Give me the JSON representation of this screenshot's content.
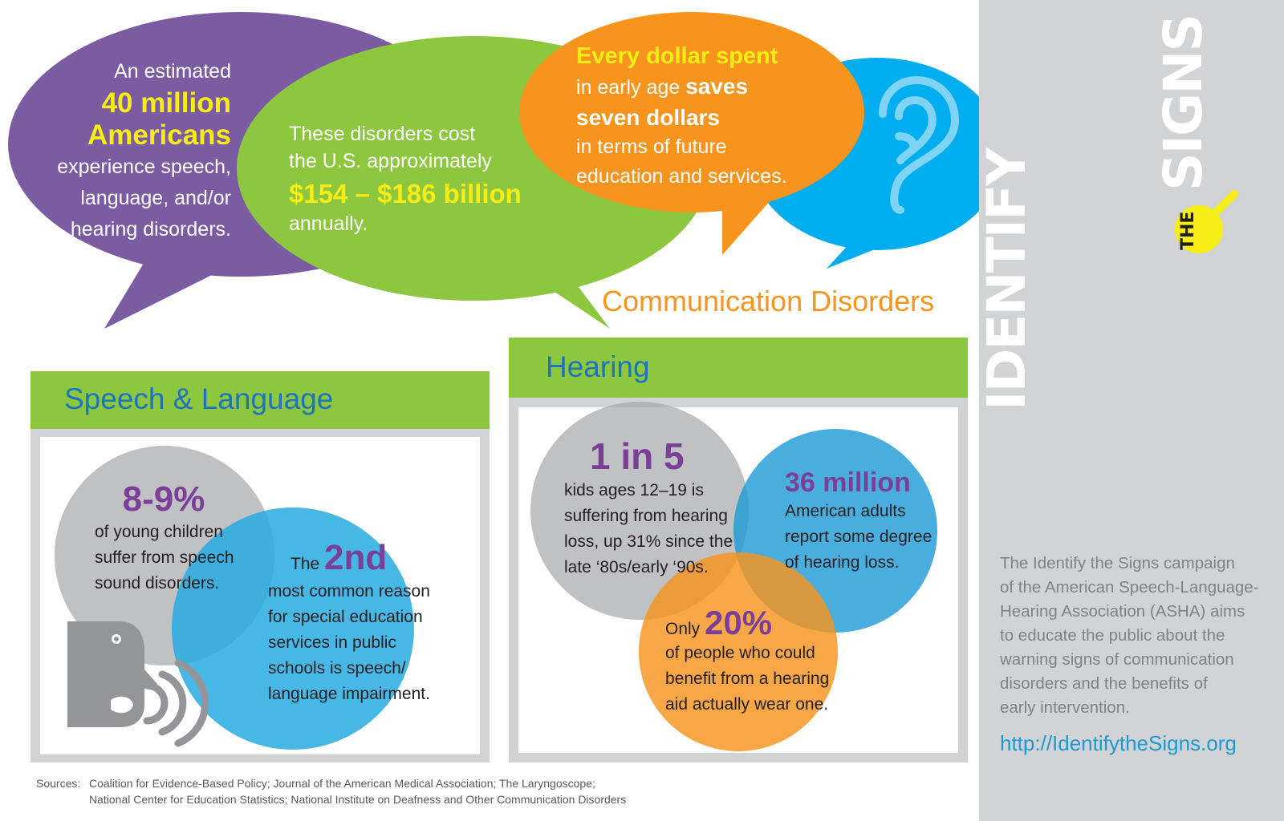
{
  "bubbles": {
    "purple": {
      "line1": "An estimated",
      "stat1": "40 million",
      "stat2": "Americans",
      "line2": "experience speech,",
      "line3": "language, and/or",
      "line4": "hearing disorders."
    },
    "green": {
      "line1": "These disorders cost",
      "line2": "the U.S. approximately",
      "stat": "$154 – $186 billion",
      "line3": "annually."
    },
    "orange": {
      "stat1": "Every dollar spent",
      "line1a": "in early age ",
      "stat2": "saves",
      "stat3": "seven dollars",
      "line2": "in terms of future",
      "line3": "education and services."
    },
    "blue": {
      "icon": "ear-icon"
    }
  },
  "title": "Communication Disorders",
  "speech_panel": {
    "heading": "Speech & Language",
    "gray_stat": "8-9%",
    "gray_l1": "of young children",
    "gray_l2": "suffer from speech",
    "gray_l3": "sound disorders.",
    "blue_pre": "The ",
    "blue_stat": "2nd",
    "blue_l1": "most common reason",
    "blue_l2": "for special education",
    "blue_l3": "services in public",
    "blue_l4": "schools is speech/",
    "blue_l5": "language impairment.",
    "icon": "speaking-head-icon"
  },
  "hearing_panel": {
    "heading": "Hearing",
    "gray_stat": "1 in 5",
    "gray_l1": "kids ages 12–19 is",
    "gray_l2": "suffering from hearing",
    "gray_l3": "loss, up 31% since the",
    "gray_l4": "late ‘80s/early ‘90s.",
    "blue_stat": "36 million",
    "blue_l1": "American adults",
    "blue_l2": "report some degree",
    "blue_l3": "of hearing loss.",
    "orange_pre": "Only ",
    "orange_stat": "20%",
    "orange_l1": "of people who could",
    "orange_l2": "benefit from a hearing",
    "orange_l3": "aid actually wear one."
  },
  "sidebar": {
    "logo_identify": "IDENTIFY",
    "logo_the": "THE",
    "logo_signs": "SIGNS",
    "desc_l1": "The Identify the Signs campaign",
    "desc_l2": "of the American Speech-Language-",
    "desc_l3": "Hearing Association (ASHA) aims",
    "desc_l4": "to educate the public about the",
    "desc_l5": "warning signs of communication",
    "desc_l6": "disorders and the benefits of",
    "desc_l7": "early intervention.",
    "url": "http://IdentifytheSigns.org"
  },
  "sources": {
    "label": "Sources:",
    "line1": "Coalition for Evidence-Based Policy; Journal of the American Medical Association; The Laryngoscope;",
    "line2": "National Center for Education Statistics; National Institute on Deafness and Other Communication Disorders"
  },
  "colors": {
    "purple": "#7b5ba1",
    "green": "#8dc63f",
    "orange": "#f7941d",
    "blue": "#00aeef",
    "teal": "#27aae1",
    "yellow": "#f6ec16",
    "gray": "#d1d3d4",
    "stat_purple": "#7b3f98"
  }
}
